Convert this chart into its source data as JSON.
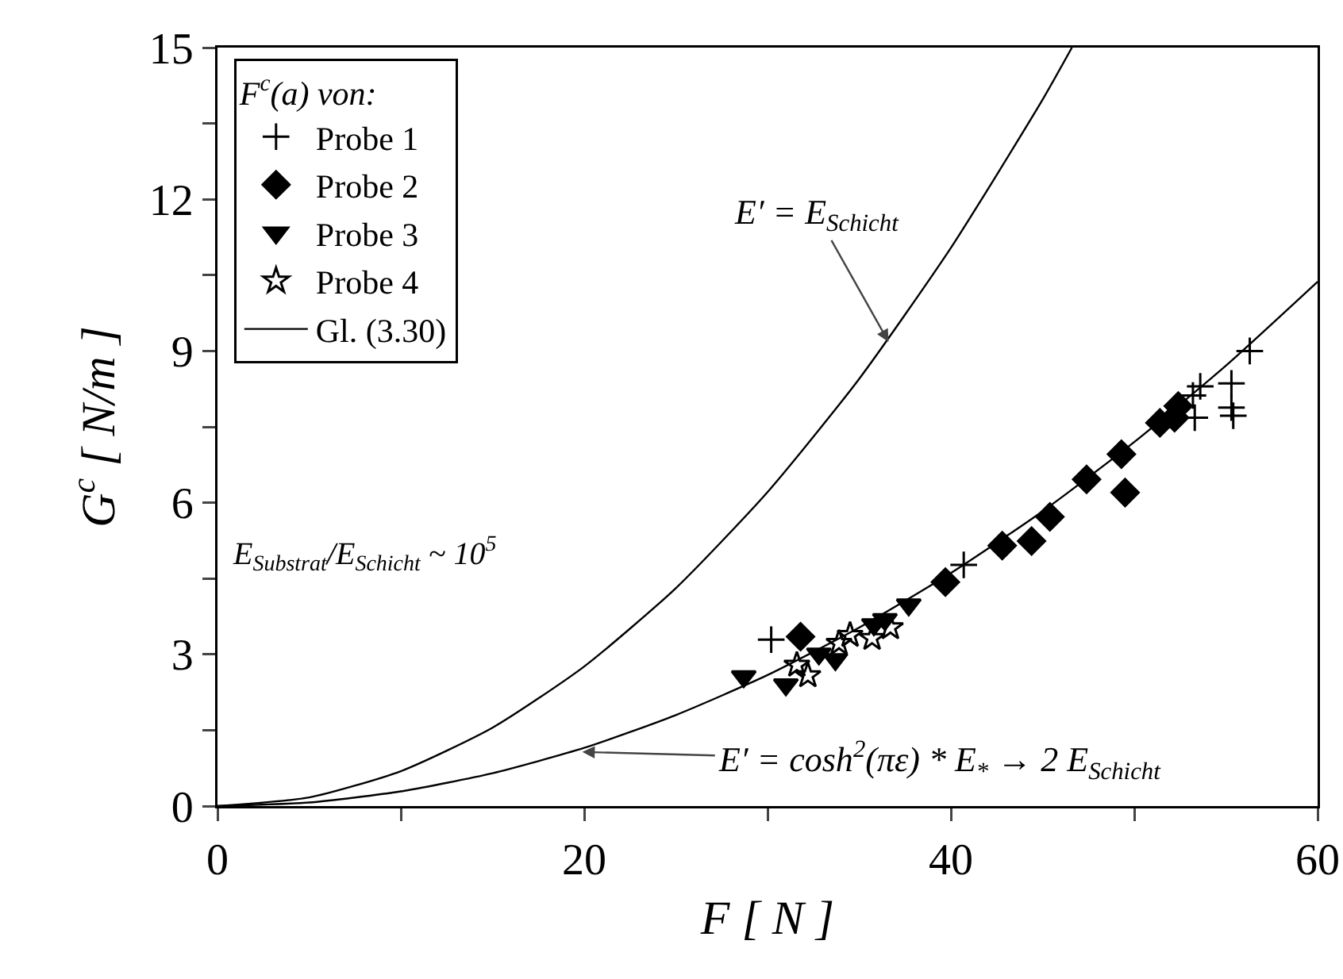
{
  "chart_data": {
    "type": "scatter",
    "xlabel": "F [ N ]",
    "ylabel": "G$^{c}$ [ N/m ]",
    "legend_title": "F$^{c}$(a) von:",
    "xlim": [
      0,
      60
    ],
    "xticks": [
      0,
      {
        "value": 10,
        "label": null
      },
      20,
      {
        "value": 30,
        "label": null
      },
      40,
      {
        "value": 50,
        "label": null
      },
      60
    ],
    "ylim": [
      0,
      15
    ],
    "yticks": [
      0,
      {
        "value": 1.5,
        "label": null
      },
      3,
      {
        "value": 4.5,
        "label": null
      },
      6,
      {
        "value": 7.5,
        "label": null
      },
      9,
      {
        "value": 10.5,
        "label": null
      },
      12,
      {
        "value": 13.5,
        "label": null
      },
      15
    ],
    "grid": false,
    "legend": "top left",
    "series": [
      {
        "name": "Probe 1",
        "color": "#000000",
        "marker": "cross",
        "x": [
          56.3,
          55.3,
          55.3,
          55.4,
          53.6,
          53.2,
          53.3,
          40.7,
          30.2
        ],
        "values": [
          9.0,
          8.36,
          7.88,
          7.72,
          8.3,
          8.12,
          7.68,
          4.77,
          3.29
        ]
      },
      {
        "name": "Probe 2",
        "color": "#000000",
        "marker": "diamond",
        "x": [
          31.8,
          39.7,
          42.8,
          44.4,
          45.4,
          47.4,
          49.3,
          49.5,
          51.4,
          52.2,
          52.4
        ],
        "values": [
          3.35,
          4.43,
          5.15,
          5.24,
          5.72,
          6.46,
          6.96,
          6.2,
          7.58,
          7.68,
          7.91
        ]
      },
      {
        "name": "Probe 3",
        "color": "#000000",
        "marker": "triangle",
        "x": [
          28.7,
          31.0,
          32.8,
          33.7,
          35.8,
          37.7,
          36.4
        ],
        "values": [
          2.56,
          2.4,
          3.01,
          2.9,
          3.59,
          3.98,
          3.69
        ]
      },
      {
        "name": "Probe 4",
        "color": "#000000",
        "marker": "star",
        "x": [
          31.6,
          32.2,
          33.9,
          35.7,
          36.7,
          34.5
        ],
        "values": [
          2.79,
          2.58,
          3.22,
          3.32,
          3.53,
          3.38
        ]
      },
      {
        "name": "Gl. (3.30)",
        "type": "line",
        "color": "#000000",
        "marker": "none",
        "line_style": "solid",
        "x": [
          0,
          5,
          10,
          15,
          20,
          25,
          30,
          35,
          40,
          45,
          50,
          55,
          60
        ],
        "values": [
          0,
          0.07,
          0.29,
          0.65,
          1.15,
          1.8,
          2.59,
          3.53,
          4.61,
          5.83,
          7.2,
          8.71,
          10.37
        ]
      },
      {
        "type": "line",
        "color": "#000000",
        "marker": "none",
        "line_style": "solid",
        "x": [
          0,
          5,
          10,
          15,
          20,
          25,
          30,
          35,
          40,
          45,
          46.6
        ],
        "values": [
          0,
          0.17,
          0.69,
          1.55,
          2.76,
          4.31,
          6.21,
          8.45,
          11.04,
          13.97,
          15
        ]
      }
    ],
    "annotations": [
      {
        "text": "E′ = E$_{Schicht}$",
        "x": 36.6,
        "y": 9.18
      },
      {
        "text": "E′ = cosh$^{2}$(πε) * E$_{*}$ → 2 E$_{Schicht}$",
        "x": 19.9,
        "y": 1.07
      },
      "E$_{Substrat}$/E$_{Schicht}$ ~ 10$^{5}$"
    ]
  }
}
